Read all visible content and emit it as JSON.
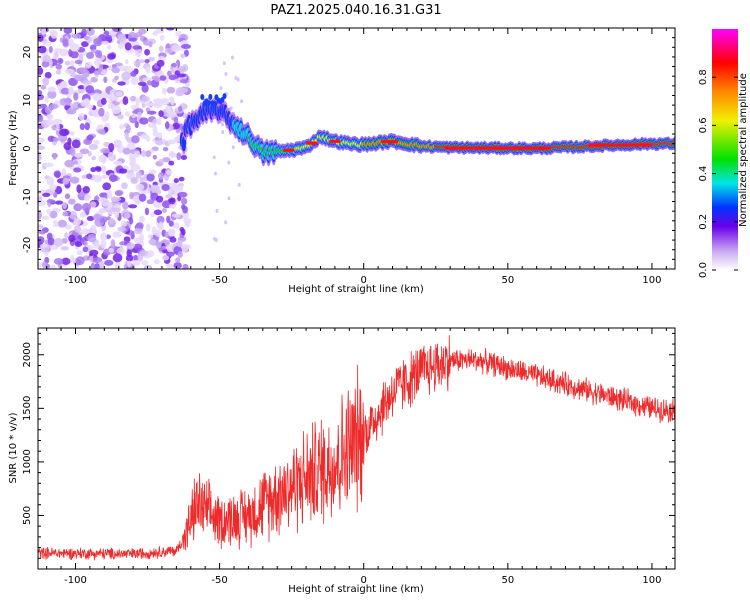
{
  "title": "PAZ1.2025.040.16.31.G31",
  "chart_data": [
    {
      "type": "heatmap",
      "xlabel": "Height of straight line (km)",
      "ylabel": "Frequency (Hz)",
      "xlim": [
        -113,
        108
      ],
      "ylim": [
        -25,
        25
      ],
      "xticks": [
        -100,
        -50,
        0,
        50,
        100
      ],
      "yticks": [
        -20,
        -10,
        0,
        10,
        20
      ],
      "colorbar": {
        "label": "Normalized spectral amplitude",
        "range": [
          0.0,
          1.0
        ],
        "ticks": [
          0.0,
          0.2,
          0.4,
          0.6,
          0.8
        ],
        "colors": [
          "#ffffff",
          "#c9a7f2",
          "#6a00e8",
          "#0033ff",
          "#00e5e5",
          "#00e000",
          "#f0f000",
          "#ff8800",
          "#ff0000",
          "#ff00ff"
        ]
      },
      "ridge": [
        {
          "x": -62,
          "f": 4.0
        },
        {
          "x": -55,
          "f": 7.5
        },
        {
          "x": -50,
          "f": 8.0
        },
        {
          "x": -45,
          "f": 5.0
        },
        {
          "x": -40,
          "f": 2.5
        },
        {
          "x": -35,
          "f": -1.0
        },
        {
          "x": -25,
          "f": -0.3
        },
        {
          "x": -20,
          "f": 0.2
        },
        {
          "x": -15,
          "f": 2.5
        },
        {
          "x": -10,
          "f": 1.5
        },
        {
          "x": -5,
          "f": 1.0
        },
        {
          "x": 0,
          "f": 0.8
        },
        {
          "x": 10,
          "f": 1.5
        },
        {
          "x": 20,
          "f": 0.5
        },
        {
          "x": 30,
          "f": 0.2
        },
        {
          "x": 60,
          "f": 0.0
        },
        {
          "x": 80,
          "f": 0.5
        },
        {
          "x": 100,
          "f": 1.0
        },
        {
          "x": 108,
          "f": 1.0
        }
      ],
      "noise_region": {
        "x_from": -113,
        "x_to": -63
      }
    },
    {
      "type": "line",
      "xlabel": "Height of straight line (km)",
      "ylabel": "SNR (10 * v/v)",
      "xlim": [
        -113,
        108
      ],
      "ylim": [
        0,
        2250
      ],
      "xticks": [
        -100,
        -50,
        0,
        50,
        100
      ],
      "yticks": [
        500,
        1000,
        1500,
        2000
      ],
      "series_color": "#ee2a2a",
      "trend": [
        {
          "x": -113,
          "y": 150
        },
        {
          "x": -80,
          "y": 140
        },
        {
          "x": -65,
          "y": 170
        },
        {
          "x": -62,
          "y": 300
        },
        {
          "x": -58,
          "y": 600
        },
        {
          "x": -50,
          "y": 450
        },
        {
          "x": -40,
          "y": 500
        },
        {
          "x": -30,
          "y": 700
        },
        {
          "x": -20,
          "y": 850
        },
        {
          "x": -10,
          "y": 1000
        },
        {
          "x": 0,
          "y": 1250
        },
        {
          "x": 10,
          "y": 1650
        },
        {
          "x": 20,
          "y": 1850
        },
        {
          "x": 30,
          "y": 1950
        },
        {
          "x": 40,
          "y": 1950
        },
        {
          "x": 60,
          "y": 1800
        },
        {
          "x": 80,
          "y": 1650
        },
        {
          "x": 100,
          "y": 1500
        },
        {
          "x": 108,
          "y": 1480
        }
      ]
    }
  ]
}
